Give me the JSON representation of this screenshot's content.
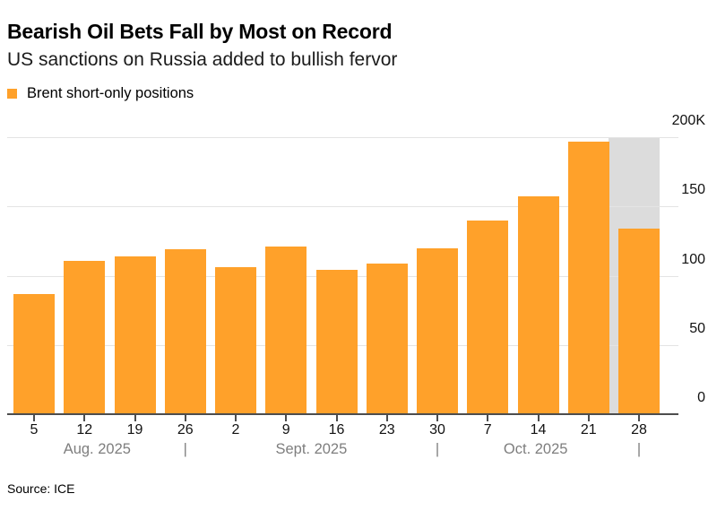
{
  "header": {
    "title": "Bearish Oil Bets Fall by Most on Record",
    "subtitle": "US sanctions on Russia added to bullish fervor"
  },
  "legend": {
    "label": "Brent short-only positions",
    "swatch_color": "#FFA12A"
  },
  "source": "Source: ICE",
  "chart_data": {
    "type": "bar",
    "title": "Bearish Oil Bets Fall by Most on Record",
    "subtitle": "US sanctions on Russia added to bullish fervor",
    "series_name": "Brent short-only positions",
    "categories": [
      "Aug 5",
      "Aug 12",
      "Aug 19",
      "Aug 26",
      "Sep 2",
      "Sep 9",
      "Sep 16",
      "Sep 23",
      "Sep 30",
      "Oct 7",
      "Oct 14",
      "Oct 21",
      "Oct 28"
    ],
    "x_tick_labels": [
      "5",
      "12",
      "19",
      "26",
      "2",
      "9",
      "16",
      "23",
      "30",
      "7",
      "14",
      "21",
      "28"
    ],
    "values_thousands": [
      87,
      111,
      114,
      119,
      106,
      121,
      104,
      109,
      120,
      140,
      157,
      197,
      134
    ],
    "ylim_thousands": [
      0,
      200
    ],
    "y_ticks": [
      {
        "label": "0",
        "value": 0
      },
      {
        "label": "50",
        "value": 50
      },
      {
        "label": "100",
        "value": 100
      },
      {
        "label": "150",
        "value": 150
      },
      {
        "label": "200K",
        "value": 200
      }
    ],
    "y_axis_side": "right",
    "grid": true,
    "legend_position": "top-left",
    "months": [
      {
        "label": "Aug. 2025",
        "tick_index": 1.25
      },
      {
        "label": "Sept. 2025",
        "tick_index": 5.5
      },
      {
        "label": "Oct. 2025",
        "tick_index": 9.95
      }
    ],
    "month_separator_char": "|",
    "month_separator_tick_indices": [
      3,
      8,
      12
    ],
    "highlight": {
      "index": 12,
      "color": "#DCDCDC"
    },
    "colors": {
      "bar": "#FFA12A",
      "gridline": "#E4E4E4",
      "axis": "#4D4D4D",
      "tick_label": "#111111",
      "month_label": "#7E7E7E"
    }
  }
}
